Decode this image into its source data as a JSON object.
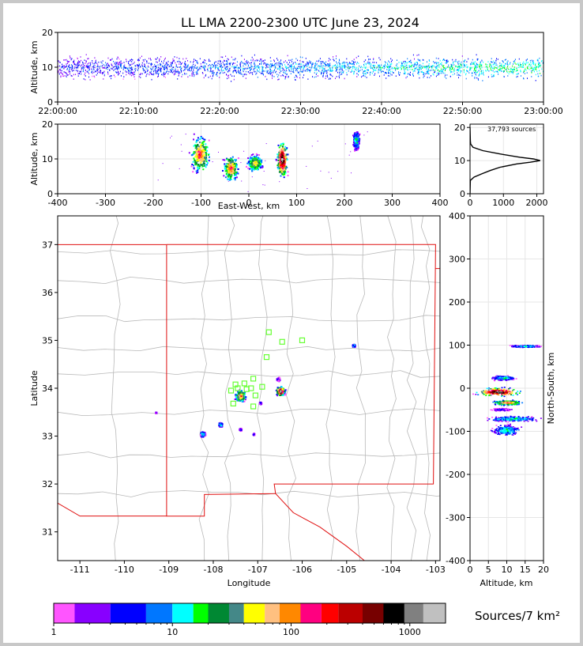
{
  "title": "LL LMA 2200-2300 UTC June 23, 2024",
  "colors": {
    "background": "#ffffff",
    "border": "#c8c8c8",
    "state_border": "#e01010",
    "county_border": "#b8b8b8",
    "station_marker": "#66ff33"
  },
  "chart_data": [
    {
      "id": "time-height",
      "type": "scatter",
      "ylabel": "Altitude, km",
      "xlim": [
        "22:00:00",
        "23:00:00"
      ],
      "ylim": [
        0,
        20
      ],
      "xticks": [
        "22:00:00",
        "22:10:00",
        "22:20:00",
        "22:30:00",
        "22:40:00",
        "22:50:00",
        "23:00:00"
      ],
      "yticks": [
        0,
        10,
        20
      ],
      "altitude_band_km": [
        5,
        15
      ],
      "typical_peak_km": 10
    },
    {
      "id": "ew-altitude",
      "type": "scatter",
      "xlabel": "East-West, km",
      "ylabel": "Altitude, km",
      "xlim": [
        -400,
        400
      ],
      "ylim": [
        0,
        20
      ],
      "xticks": [
        -400,
        -300,
        -200,
        -100,
        0,
        100,
        200,
        300,
        400
      ],
      "yticks": [
        0,
        10,
        20
      ],
      "clusters": [
        {
          "x_range": [
            -128,
            -78
          ],
          "z_range": [
            5,
            18
          ],
          "peak": "red"
        },
        {
          "x_range": [
            -58,
            -20
          ],
          "z_range": [
            3,
            12
          ],
          "peak": "red"
        },
        {
          "x_range": [
            -8,
            32
          ],
          "z_range": [
            6,
            12
          ],
          "peak": "orange"
        },
        {
          "x_range": [
            55,
            82
          ],
          "z_range": [
            4,
            16
          ],
          "peak": "white"
        },
        {
          "x_range": [
            215,
            232
          ],
          "z_range": [
            12,
            19
          ],
          "peak": "green"
        }
      ]
    },
    {
      "id": "altitude-histogram",
      "type": "line",
      "annotation": "37,793 sources",
      "xlim": [
        0,
        2200
      ],
      "ylim": [
        0,
        21
      ],
      "xticks": [
        0,
        1000,
        2000
      ],
      "yticks": [
        0,
        10,
        20
      ],
      "profile_km": [
        0,
        4,
        5,
        6,
        7,
        8,
        9,
        9.5,
        10,
        10.5,
        11,
        12,
        13,
        14,
        15,
        16,
        18,
        20
      ],
      "profile_counts": [
        0,
        10,
        120,
        350,
        600,
        900,
        1400,
        1800,
        2100,
        1900,
        1500,
        900,
        380,
        90,
        20,
        10,
        5,
        0
      ]
    },
    {
      "id": "plan-view",
      "type": "scatter",
      "xlabel": "Longitude",
      "ylabel": "Latitude",
      "xlim": [
        -111.5,
        -102.9
      ],
      "ylim": [
        30.4,
        37.6
      ],
      "xticks": [
        -111,
        -110,
        -109,
        -108,
        -107,
        -106,
        -105,
        -104,
        -103
      ],
      "yticks": [
        31,
        32,
        33,
        34,
        35,
        36,
        37
      ],
      "clusters": [
        {
          "lon": -107.4,
          "lat": 33.85,
          "size": 0.25,
          "peak": "red"
        },
        {
          "lon": -106.5,
          "lat": 33.95,
          "size": 0.2,
          "peak": "white"
        },
        {
          "lon": -106.55,
          "lat": 34.2,
          "size": 0.08,
          "peak": "blue"
        },
        {
          "lon": -107.85,
          "lat": 33.25,
          "size": 0.1,
          "peak": "green"
        },
        {
          "lon": -108.25,
          "lat": 33.05,
          "size": 0.12,
          "peak": "green"
        },
        {
          "lon": -107.4,
          "lat": 33.15,
          "size": 0.06,
          "peak": "blue"
        },
        {
          "lon": -107.1,
          "lat": 33.05,
          "size": 0.04,
          "peak": "blue"
        },
        {
          "lon": -106.95,
          "lat": 33.7,
          "size": 0.05,
          "peak": "blue"
        },
        {
          "lon": -104.85,
          "lat": 34.9,
          "size": 0.07,
          "peak": "green"
        },
        {
          "lon": -109.3,
          "lat": 33.5,
          "size": 0.03,
          "peak": "blue"
        }
      ],
      "stations": [
        {
          "lon": -106.75,
          "lat": 35.17
        },
        {
          "lon": -106.45,
          "lat": 34.97
        },
        {
          "lon": -106.0,
          "lat": 35.0
        },
        {
          "lon": -106.8,
          "lat": 34.65
        },
        {
          "lon": -107.1,
          "lat": 34.2
        },
        {
          "lon": -107.3,
          "lat": 34.1
        },
        {
          "lon": -107.15,
          "lat": 34.0
        },
        {
          "lon": -106.9,
          "lat": 34.03
        },
        {
          "lon": -107.45,
          "lat": 34.0
        },
        {
          "lon": -107.6,
          "lat": 33.95
        },
        {
          "lon": -107.05,
          "lat": 33.85
        },
        {
          "lon": -107.1,
          "lat": 33.62
        },
        {
          "lon": -107.55,
          "lat": 33.68
        },
        {
          "lon": -107.5,
          "lat": 34.08
        },
        {
          "lon": -107.25,
          "lat": 33.98
        }
      ]
    },
    {
      "id": "altitude-ns",
      "type": "scatter",
      "xlabel": "Altitude, km",
      "ylabel": "North-South, km",
      "xlim": [
        0,
        20
      ],
      "ylim": [
        -400,
        400
      ],
      "xticks": [
        0,
        5,
        10,
        15,
        20
      ],
      "yticks": [
        -400,
        -300,
        -200,
        -100,
        0,
        100,
        200,
        300,
        400
      ],
      "clusters": [
        {
          "y_range": [
            95,
            102
          ],
          "z_range": [
            10,
            20
          ],
          "peak": "green"
        },
        {
          "y_range": [
            18,
            32
          ],
          "z_range": [
            5,
            13
          ],
          "peak": "green"
        },
        {
          "y_range": [
            -20,
            5
          ],
          "z_range": [
            0,
            15
          ],
          "peak": "white"
        },
        {
          "y_range": [
            -40,
            -25
          ],
          "z_range": [
            5,
            15
          ],
          "peak": "red"
        },
        {
          "y_range": [
            -52,
            -45
          ],
          "z_range": [
            5,
            12
          ],
          "peak": "blue"
        },
        {
          "y_range": [
            -78,
            -62
          ],
          "z_range": [
            3,
            20
          ],
          "peak": "green"
        },
        {
          "y_range": [
            -112,
            -80
          ],
          "z_range": [
            5,
            15
          ],
          "peak": "green"
        }
      ]
    }
  ],
  "colorbar": {
    "label": "Sources/7 km²",
    "ticks": [
      "1",
      "10",
      "100",
      "1000"
    ],
    "colors": [
      "#ff55ff",
      "#8800ff",
      "#0000ff",
      "#0077ff",
      "#00ffff",
      "#00ff00",
      "#008833",
      "#448888",
      "#ffff00",
      "#ffc080",
      "#ff8800",
      "#ff0080",
      "#ff0000",
      "#bb0000",
      "#770000",
      "#000000",
      "#808080",
      "#c0c0c0",
      "#ffffff"
    ],
    "edges": [
      1,
      1.5,
      3,
      6,
      10,
      15,
      20,
      30,
      40,
      60,
      80,
      120,
      180,
      250,
      400,
      600,
      900,
      1300,
      2000
    ]
  }
}
